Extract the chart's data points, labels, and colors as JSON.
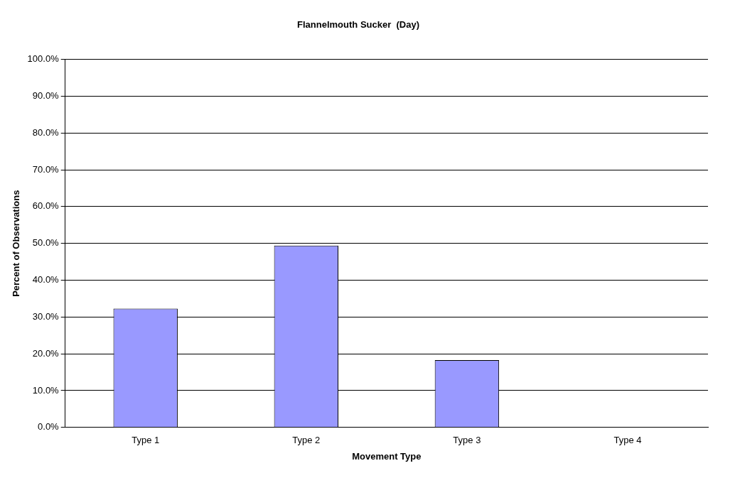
{
  "chart_data": {
    "type": "bar",
    "title": "Flannelmouth Sucker  (Day)",
    "xlabel": "Movement Type",
    "ylabel": "Percent of Observations",
    "categories": [
      "Type 1",
      "Type 2",
      "Type 3",
      "Type 4"
    ],
    "values": [
      32.3,
      49.4,
      18.3,
      0
    ],
    "color": "#9999ff",
    "ylim": [
      0,
      100
    ],
    "yticks": [
      {
        "value": 0,
        "label": "0.0%"
      },
      {
        "value": 10,
        "label": "10.0%"
      },
      {
        "value": 20,
        "label": "20.0%"
      },
      {
        "value": 30,
        "label": "30.0%"
      },
      {
        "value": 40,
        "label": "40.0%"
      },
      {
        "value": 50,
        "label": "50.0%"
      },
      {
        "value": 60,
        "label": "60.0%"
      },
      {
        "value": 70,
        "label": "70.0%"
      },
      {
        "value": 80,
        "label": "80.0%"
      },
      {
        "value": 90,
        "label": "90.0%"
      },
      {
        "value": 100,
        "label": "100.0%"
      }
    ],
    "grid": "y",
    "legend": false
  }
}
